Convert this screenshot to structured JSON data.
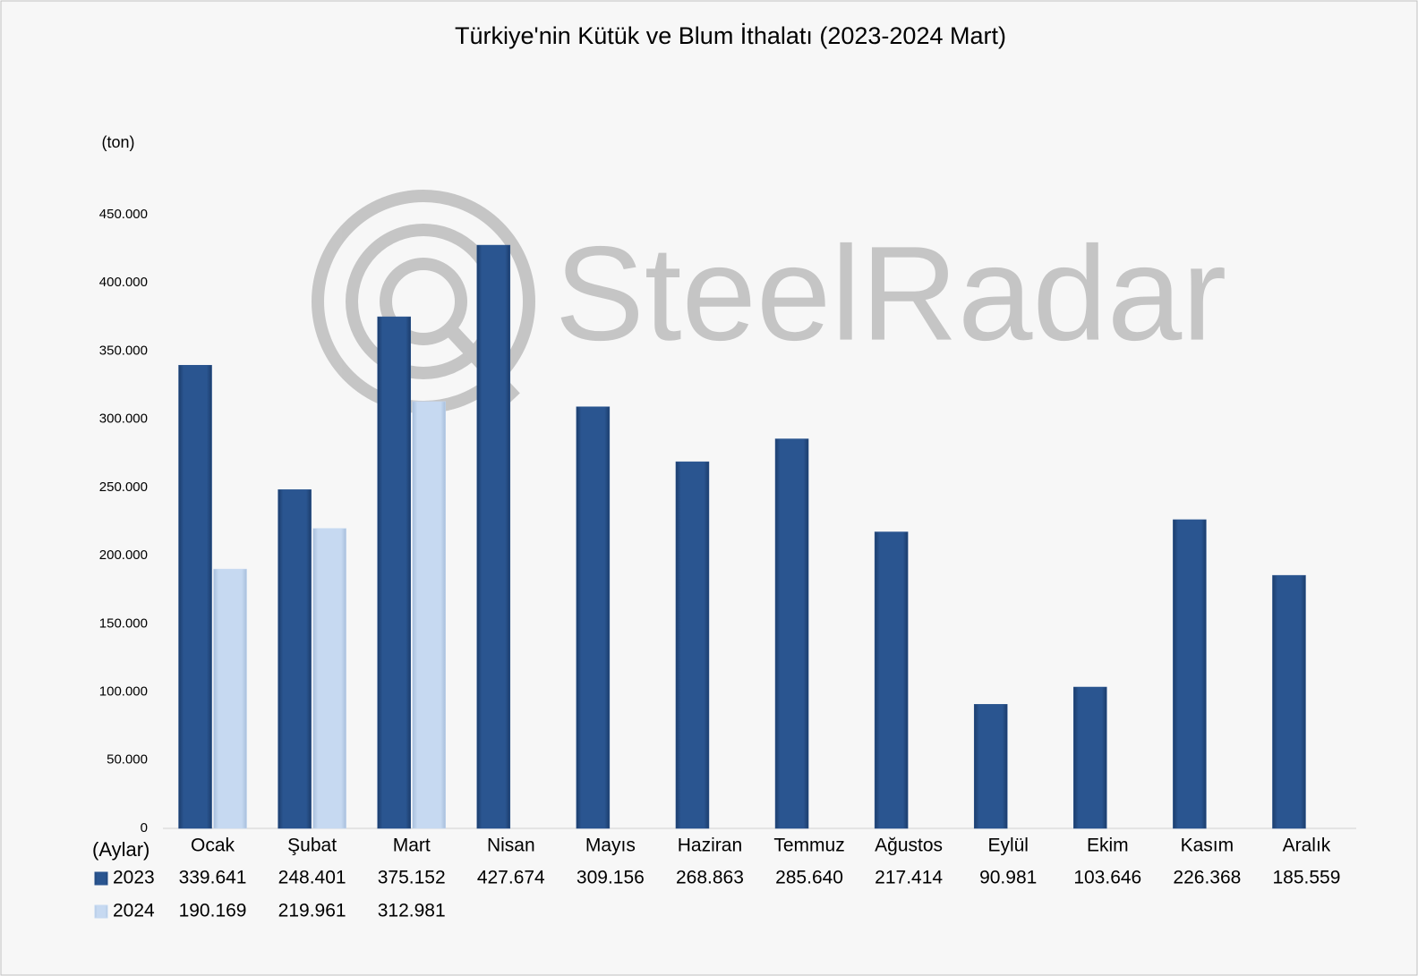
{
  "chart_data": {
    "type": "bar",
    "title": "Türkiye'nin Kütük ve Blum İthalatı (2023-2024 Mart)",
    "y_label": "(ton)",
    "x_label": "(Aylar)",
    "watermark": "SteelRadar",
    "categories": [
      "Ocak",
      "Şubat",
      "Mart",
      "Nisan",
      "Mayıs",
      "Haziran",
      "Temmuz",
      "Ağustos",
      "Eylül",
      "Ekim",
      "Kasım",
      "Aralık"
    ],
    "series": [
      {
        "name": "2023",
        "color": "#2a5590",
        "values": [
          339641,
          248401,
          375152,
          427674,
          309156,
          268863,
          285640,
          217414,
          90981,
          103646,
          226368,
          185559
        ],
        "value_labels": [
          "339.641",
          "248.401",
          "375.152",
          "427.674",
          "309.156",
          "268.863",
          "285.640",
          "217.414",
          "90.981",
          "103.646",
          "226.368",
          "185.559"
        ]
      },
      {
        "name": "2024",
        "color": "#c6d9f1",
        "values": [
          190169,
          219961,
          312981,
          null,
          null,
          null,
          null,
          null,
          null,
          null,
          null,
          null
        ],
        "value_labels": [
          "190.169",
          "219.961",
          "312.981",
          null,
          null,
          null,
          null,
          null,
          null,
          null,
          null,
          null
        ]
      }
    ],
    "ylim": [
      0,
      450000
    ],
    "yticks": [
      0,
      {
        "value": 50000,
        "label": "50.000"
      },
      {
        "value": 100000,
        "label": "100.000"
      },
      {
        "value": 150000,
        "label": "150.000"
      },
      {
        "value": 200000,
        "label": "200.000"
      },
      {
        "value": 250000,
        "label": "250.000"
      },
      {
        "value": 300000,
        "label": "300.000"
      },
      {
        "value": 350000,
        "label": "350.000"
      },
      {
        "value": 400000,
        "label": "400.000"
      },
      {
        "value": 450000,
        "label": "450.000"
      }
    ],
    "grid": false,
    "data_table": true
  }
}
